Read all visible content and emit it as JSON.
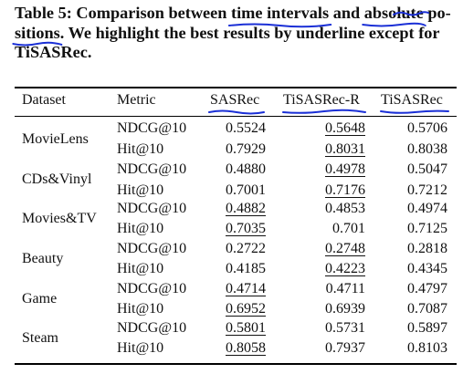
{
  "caption": {
    "line1_a": "Table 5: Comparison between ",
    "line1_hl1": "time intervals",
    "line1_b": " and ",
    "line1_hl2": "absolute",
    "line1_c": " po-",
    "line2_hl": "sitions",
    "line2_b": ". We highlight the best results by underline except for",
    "line3": "TiSASRec."
  },
  "headers": {
    "dataset": "Dataset",
    "metric": "Metric",
    "sasrec": "SASRec",
    "tisasrec_r": "TiSASRec-R",
    "tisasrec": "TiSASRec"
  },
  "datasets": [
    {
      "name": "MovieLens",
      "rows": [
        {
          "metric": "NDCG@10",
          "sasrec": "0.5524",
          "tisasrec_r": "0.5648",
          "tisasrec": "0.5706",
          "best": "tisasrec_r"
        },
        {
          "metric": "Hit@10",
          "sasrec": "0.7929",
          "tisasrec_r": "0.8031",
          "tisasrec": "0.8038",
          "best": "tisasrec_r"
        }
      ]
    },
    {
      "name": "CDs&Vinyl",
      "rows": [
        {
          "metric": "NDCG@10",
          "sasrec": "0.4880",
          "tisasrec_r": "0.4978",
          "tisasrec": "0.5047",
          "best": "tisasrec_r"
        },
        {
          "metric": "Hit@10",
          "sasrec": "0.7001",
          "tisasrec_r": "0.7176",
          "tisasrec": "0.7212",
          "best": "tisasrec_r"
        }
      ]
    },
    {
      "name": "Movies&TV",
      "rows": [
        {
          "metric": "NDCG@10",
          "sasrec": "0.4882",
          "tisasrec_r": "0.4853",
          "tisasrec": "0.4974",
          "best": "sasrec"
        },
        {
          "metric": "Hit@10",
          "sasrec": "0.7035",
          "tisasrec_r": "0.701",
          "tisasrec": "0.7125",
          "best": "sasrec"
        }
      ]
    },
    {
      "name": "Beauty",
      "rows": [
        {
          "metric": "NDCG@10",
          "sasrec": "0.2722",
          "tisasrec_r": "0.2748",
          "tisasrec": "0.2818",
          "best": "tisasrec_r"
        },
        {
          "metric": "Hit@10",
          "sasrec": "0.4185",
          "tisasrec_r": "0.4223",
          "tisasrec": "0.4345",
          "best": "tisasrec_r"
        }
      ]
    },
    {
      "name": "Game",
      "rows": [
        {
          "metric": "NDCG@10",
          "sasrec": "0.4714",
          "tisasrec_r": "0.4711",
          "tisasrec": "0.4797",
          "best": "sasrec"
        },
        {
          "metric": "Hit@10",
          "sasrec": "0.6952",
          "tisasrec_r": "0.6939",
          "tisasrec": "0.7087",
          "best": "sasrec"
        }
      ]
    },
    {
      "name": "Steam",
      "rows": [
        {
          "metric": "NDCG@10",
          "sasrec": "0.5801",
          "tisasrec_r": "0.5731",
          "tisasrec": "0.5897",
          "best": "sasrec"
        },
        {
          "metric": "Hit@10",
          "sasrec": "0.8058",
          "tisasrec_r": "0.7937",
          "tisasrec": "0.8103",
          "best": "sasrec"
        }
      ]
    }
  ],
  "colors": {
    "annotation_ink": "#1a2fd6",
    "text": "#111111",
    "rules": "#000000"
  }
}
